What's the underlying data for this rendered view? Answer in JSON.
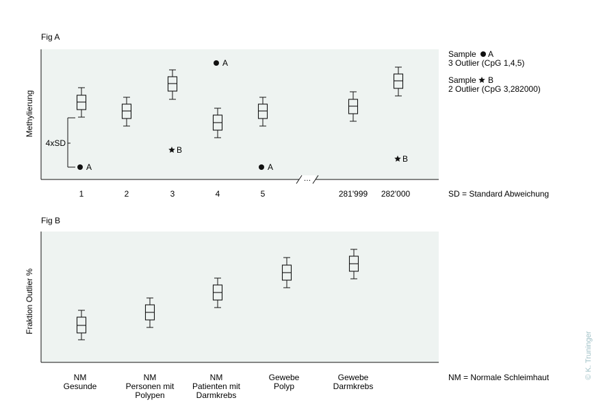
{
  "fig_a": {
    "title": "Fig A",
    "ylabel": "Methylierung",
    "sd_bracket_label": "4xSD",
    "x_labels": [
      "1",
      "2",
      "3",
      "4",
      "5",
      "281'999",
      "282'000"
    ],
    "axis_break": "…",
    "outlier_marker_A": "A",
    "outlier_marker_B": "B",
    "legend": {
      "sample_a_prefix": "Sample",
      "sample_a_letter": "A",
      "sample_a_desc": "3 Outlier (CpG 1,4,5)",
      "sample_b_prefix": "Sample",
      "sample_b_letter": "B",
      "sample_b_desc": "2 Outlier (CpG 3,282000)"
    },
    "footnote": "SD = Standard Abweichung"
  },
  "fig_b": {
    "title": "Fig B",
    "ylabel": "Fraktion Outlier %",
    "categories": [
      {
        "lines": [
          "NM",
          "Gesunde"
        ]
      },
      {
        "lines": [
          "NM",
          "Personen mit",
          "Polypen"
        ]
      },
      {
        "lines": [
          "NM",
          "Patienten mit",
          "Darmkrebs"
        ]
      },
      {
        "lines": [
          "Gewebe",
          "Polyp"
        ]
      },
      {
        "lines": [
          "Gewebe",
          "Darmkrebs"
        ]
      }
    ],
    "footnote": "NM = Normale Schleimhaut"
  },
  "copyright": "© K. Truninger",
  "colors": {
    "panel_background": "#eef3f1",
    "line": "#111111",
    "copyright": "#9fc0c6"
  }
}
